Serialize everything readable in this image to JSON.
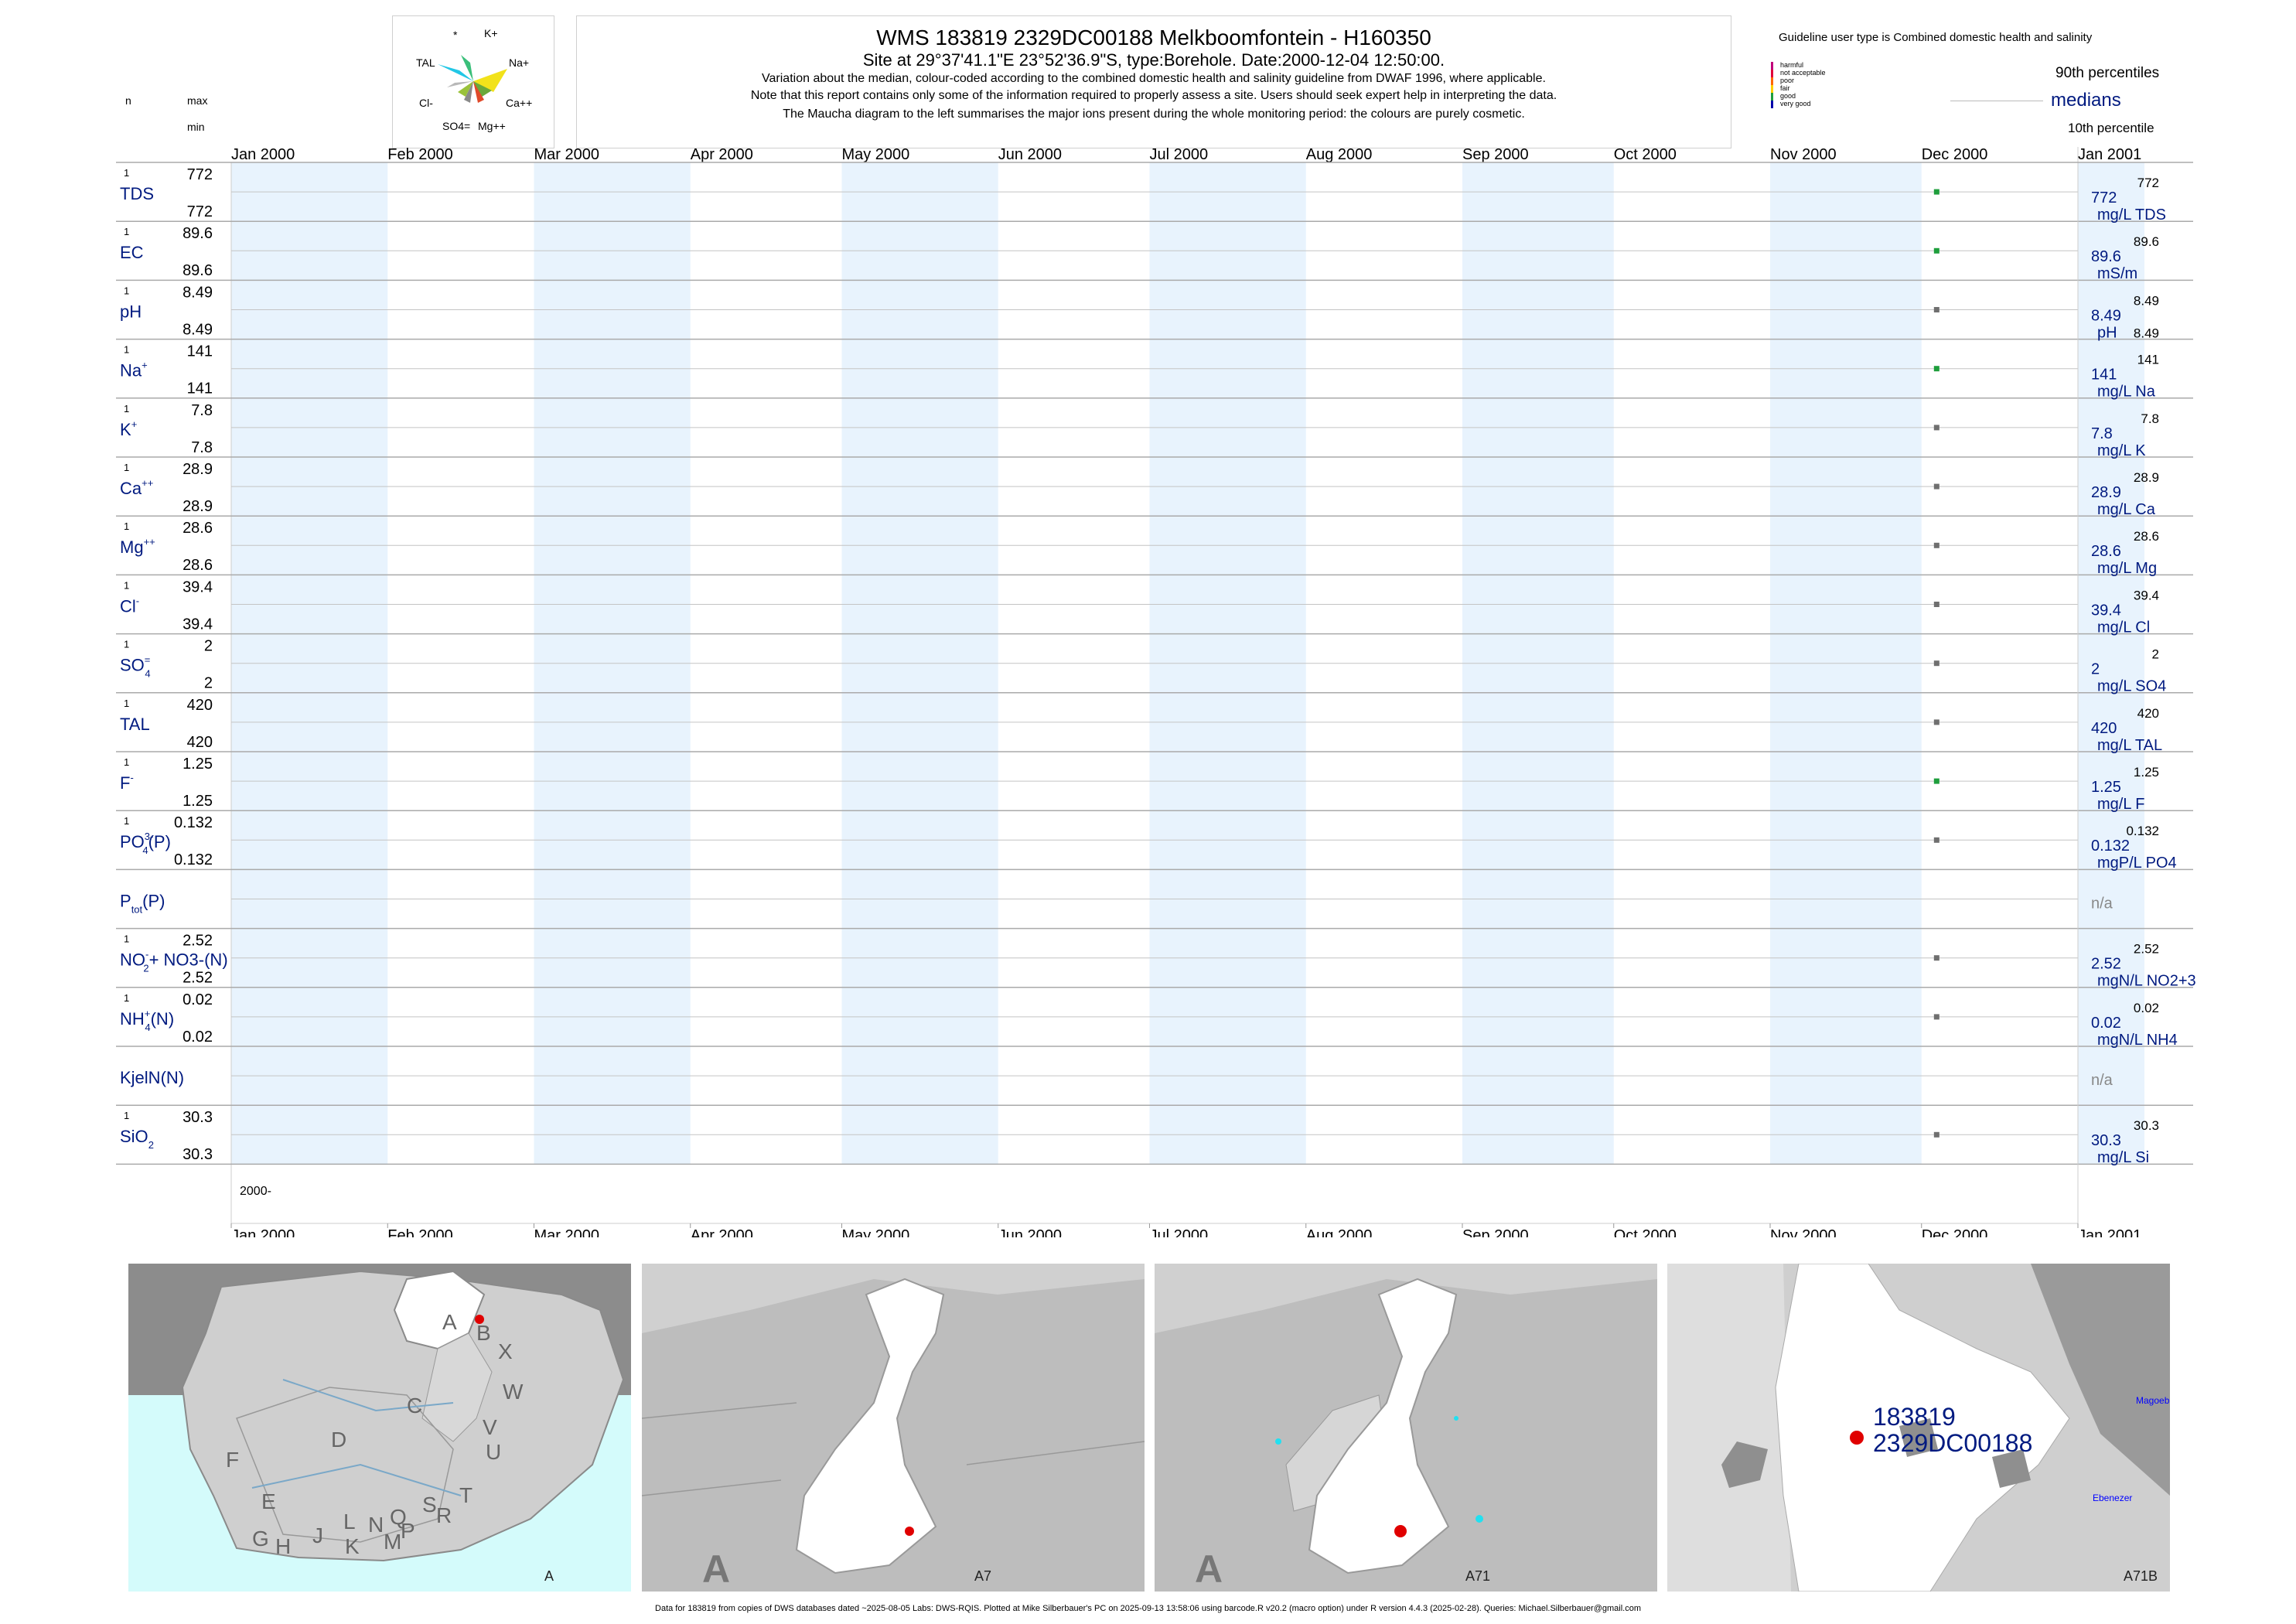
{
  "header": {
    "title": "WMS 183819 2329DC00188 Melkboomfontein - H160350",
    "site_line": "Site at 29°37'41.1\"E 23°52'36.9\"S, type:Borehole. Date:2000-12-04 12:50:00.",
    "note1": "Variation about the median,  colour-coded according to the combined domestic health and salinity guideline from DWAF 1996, where applicable.",
    "note2": "Note that this report contains only some of the information required to properly assess a site. Users should seek expert help in interpreting the data.",
    "note3": "The Maucha diagram to the left summarises the major ions present during the whole monitoring period: the colours are purely cosmetic."
  },
  "maucha": {
    "labels": [
      "*",
      "K+",
      "TAL",
      "Na+",
      "Cl-",
      "Ca++",
      "SO4=",
      "Mg++"
    ]
  },
  "left_header": {
    "n": "n",
    "max": "max",
    "min": "min"
  },
  "legend": {
    "guideline": "Guideline user type is Combined domestic health and salinity",
    "classes": [
      {
        "label": "harmful",
        "color": "#c0007a"
      },
      {
        "label": "not acceptable",
        "color": "#e0003a"
      },
      {
        "label": "poor",
        "color": "#ff6600"
      },
      {
        "label": "fair",
        "color": "#ffd000"
      },
      {
        "label": "good",
        "color": "#1e9e3c"
      },
      {
        "label": "very good",
        "color": "#0000aa"
      }
    ],
    "p90": "90th percentiles",
    "medians": "medians",
    "p10": "10th percentile"
  },
  "chart_data": {
    "type": "scatter",
    "x_range": [
      "2000-01-01",
      "2001-01-01"
    ],
    "months": [
      "Jan 2000",
      "Feb 2000",
      "Mar 2000",
      "Apr 2000",
      "May 2000",
      "Jun 2000",
      "Jul 2000",
      "Aug 2000",
      "Sep 2000",
      "Oct 2000",
      "Nov 2000",
      "Dec 2000",
      "Jan 2001"
    ],
    "year_label": "2000-",
    "sample_date": "2000-12-04",
    "rows": [
      {
        "label": "TDS",
        "sup": "",
        "sub": "",
        "tail": "",
        "n": "1",
        "max": "772",
        "min": "772",
        "median": "772",
        "p90": "772",
        "p10": "",
        "unit": "mg/L TDS",
        "class_color": "#1e9e3c"
      },
      {
        "label": "EC",
        "sup": "",
        "sub": "",
        "tail": "",
        "n": "1",
        "max": "89.6",
        "min": "89.6",
        "median": "89.6",
        "p90": "89.6",
        "p10": "",
        "unit": "mS/m",
        "class_color": "#1e9e3c"
      },
      {
        "label": "pH",
        "sup": "",
        "sub": "",
        "tail": "",
        "n": "1",
        "max": "8.49",
        "min": "8.49",
        "median": "8.49",
        "p90": "8.49",
        "p10": "8.49",
        "unit": "pH",
        "class_color": "#6f6f6f"
      },
      {
        "label": "Na",
        "sup": "+",
        "sub": "",
        "tail": "",
        "n": "1",
        "max": "141",
        "min": "141",
        "median": "141",
        "p90": "141",
        "p10": "",
        "unit": "mg/L Na",
        "class_color": "#1e9e3c"
      },
      {
        "label": "K",
        "sup": "+",
        "sub": "",
        "tail": "",
        "n": "1",
        "max": "7.8",
        "min": "7.8",
        "median": "7.8",
        "p90": "7.8",
        "p10": "",
        "unit": "mg/L K",
        "class_color": "#6f6f6f"
      },
      {
        "label": "Ca",
        "sup": "++",
        "sub": "",
        "tail": "",
        "n": "1",
        "max": "28.9",
        "min": "28.9",
        "median": "28.9",
        "p90": "28.9",
        "p10": "",
        "unit": "mg/L Ca",
        "class_color": "#6f6f6f"
      },
      {
        "label": "Mg",
        "sup": "++",
        "sub": "",
        "tail": "",
        "n": "1",
        "max": "28.6",
        "min": "28.6",
        "median": "28.6",
        "p90": "28.6",
        "p10": "",
        "unit": "mg/L Mg",
        "class_color": "#6f6f6f"
      },
      {
        "label": "Cl",
        "sup": "-",
        "sub": "",
        "tail": "",
        "n": "1",
        "max": "39.4",
        "min": "39.4",
        "median": "39.4",
        "p90": "39.4",
        "p10": "",
        "unit": "mg/L Cl",
        "class_color": "#6f6f6f"
      },
      {
        "label": "SO",
        "sup": "=",
        "sub": "4",
        "tail": "",
        "n": "1",
        "max": "2",
        "min": "2",
        "median": "2",
        "p90": "2",
        "p10": "",
        "unit": "mg/L SO4",
        "class_color": "#6f6f6f"
      },
      {
        "label": "TAL",
        "sup": "",
        "sub": "",
        "tail": "",
        "n": "1",
        "max": "420",
        "min": "420",
        "median": "420",
        "p90": "420",
        "p10": "",
        "unit": "mg/L TAL",
        "class_color": "#6f6f6f"
      },
      {
        "label": "F",
        "sup": "-",
        "sub": "",
        "tail": "",
        "n": "1",
        "max": "1.25",
        "min": "1.25",
        "median": "1.25",
        "p90": "1.25",
        "p10": "",
        "unit": "mg/L F",
        "class_color": "#1e9e3c"
      },
      {
        "label": "PO",
        "sup": "3-",
        "sub": "4",
        "tail": "(P)",
        "n": "1",
        "max": "0.132",
        "min": "0.132",
        "median": "0.132",
        "p90": "0.132",
        "p10": "",
        "unit": "mgP/L PO4",
        "class_color": "#6f6f6f"
      },
      {
        "label": "P",
        "sup": "",
        "sub": "tot",
        "tail": "(P)",
        "n": "",
        "max": "",
        "min": "",
        "median": "n/a",
        "p90": "",
        "p10": "",
        "unit": "",
        "class_color": ""
      },
      {
        "label": "NO",
        "sup": "-",
        "sub": "2",
        "tail": "+ NO3-(N)",
        "n": "1",
        "max": "2.52",
        "min": "2.52",
        "median": "2.52",
        "p90": "2.52",
        "p10": "",
        "unit": "mgN/L NO2+3",
        "class_color": "#6f6f6f"
      },
      {
        "label": "NH",
        "sup": "+",
        "sub": "4",
        "tail": "(N)",
        "n": "1",
        "max": "0.02",
        "min": "0.02",
        "median": "0.02",
        "p90": "0.02",
        "p10": "",
        "unit": "mgN/L NH4",
        "class_color": "#6f6f6f"
      },
      {
        "label": "KjelN(N)",
        "sup": "",
        "sub": "",
        "tail": "",
        "n": "",
        "max": "",
        "min": "",
        "median": "n/a",
        "p90": "",
        "p10": "",
        "unit": "",
        "class_color": ""
      },
      {
        "label": "SiO",
        "sup": "",
        "sub": "2",
        "tail": "",
        "n": "1",
        "max": "30.3",
        "min": "30.3",
        "median": "30.3",
        "p90": "30.3",
        "p10": "",
        "unit": "mg/L Si",
        "class_color": "#6f6f6f"
      }
    ]
  },
  "maps": {
    "map_a": {
      "letters": [
        "A",
        "B",
        "X",
        "C",
        "W",
        "D",
        "V",
        "U",
        "F",
        "T",
        "E",
        "S",
        "R",
        "L",
        "N",
        "Q",
        "P",
        "J",
        "M",
        "K",
        "G",
        "H"
      ],
      "code": "A"
    },
    "map_a7": {
      "big": "A",
      "code": "A7"
    },
    "map_a71": {
      "big": "A",
      "code": "A71"
    },
    "map_a71b": {
      "site_id": "183819",
      "site_code": "2329DC00188",
      "place1": "Magoeb",
      "place2": "Ebenezer",
      "code": "A71B"
    }
  },
  "footer": "Data for 183819 from copies of DWS databases dated ~2025-08-05 Labs: DWS-RQIS. Plotted at Mike Silberbauer's PC on 2025-09-13 13:58:06 using barcode.R v20.2 (macro option) under R version 4.4.3 (2025-02-28). Queries: Michael.Silberbauer@gmail.com"
}
